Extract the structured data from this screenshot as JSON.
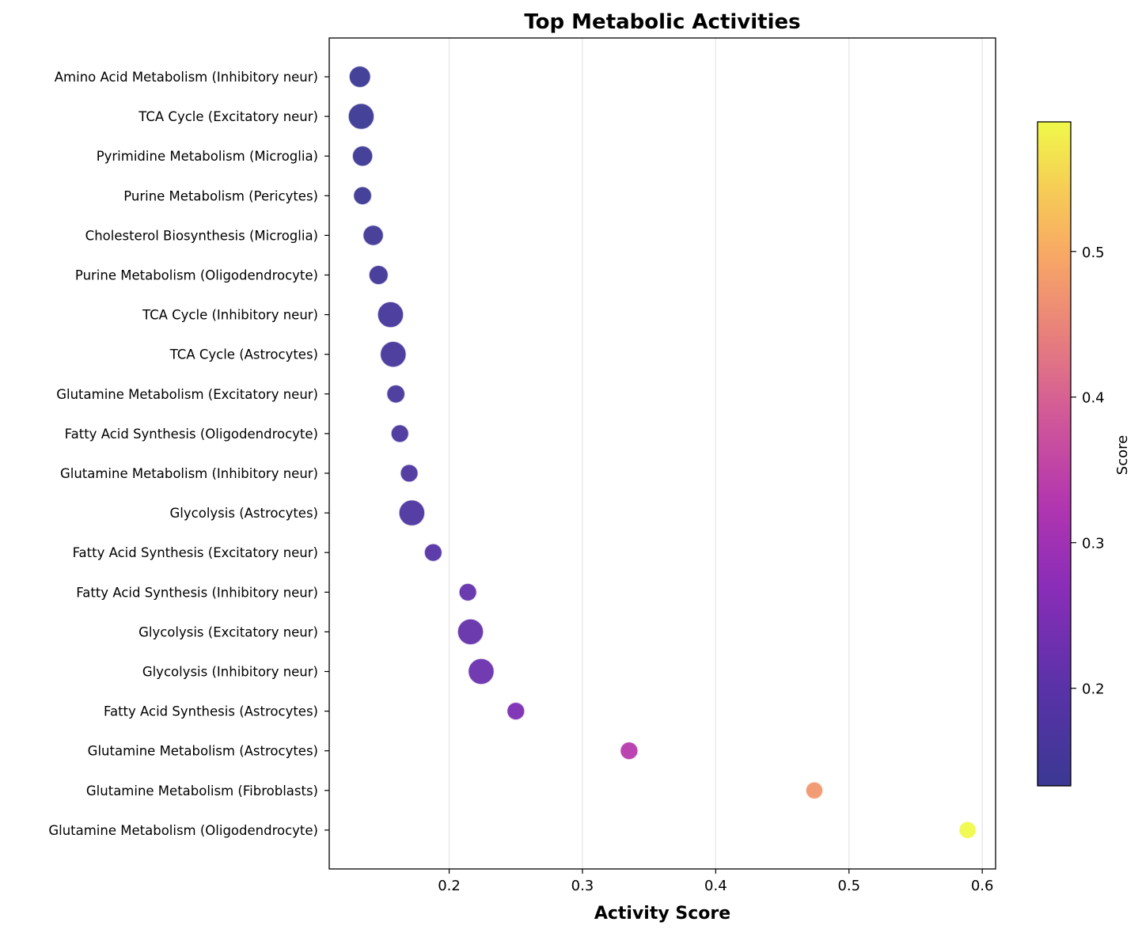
{
  "chart_data": {
    "type": "scatter",
    "title": "Top Metabolic Activities",
    "xlabel": "Activity Score",
    "ylabel": "",
    "xlim": [
      0.11,
      0.61
    ],
    "xticks": [
      0.2,
      0.3,
      0.4,
      0.5,
      0.6
    ],
    "xtick_labels": [
      "0.2",
      "0.3",
      "0.4",
      "0.5",
      "0.6"
    ],
    "grid": "vertical",
    "colormap": "plasma",
    "colorbar": {
      "label": "Score",
      "range": [
        0.133,
        0.589
      ],
      "ticks": [
        0.2,
        0.3,
        0.4,
        0.5
      ],
      "tick_labels": [
        "0.2",
        "0.3",
        "0.4",
        "0.5"
      ]
    },
    "categories": [
      "Amino Acid Metabolism (Inhibitory neur)",
      "TCA Cycle (Excitatory neur)",
      "Pyrimidine Metabolism (Microglia)",
      "Purine Metabolism (Pericytes)",
      "Cholesterol Biosynthesis (Microglia)",
      "Purine Metabolism (Oligodendrocyte)",
      "TCA Cycle (Inhibitory neur)",
      "TCA Cycle (Astrocytes)",
      "Glutamine Metabolism (Excitatory neur)",
      "Fatty Acid Synthesis (Oligodendrocyte)",
      "Glutamine Metabolism (Inhibitory neur)",
      "Glycolysis (Astrocytes)",
      "Fatty Acid Synthesis (Excitatory neur)",
      "Fatty Acid Synthesis (Inhibitory neur)",
      "Glycolysis (Excitatory neur)",
      "Glycolysis (Inhibitory neur)",
      "Fatty Acid Synthesis (Astrocytes)",
      "Glutamine Metabolism (Astrocytes)",
      "Glutamine Metabolism (Fibroblasts)",
      "Glutamine Metabolism (Oligodendrocyte)"
    ],
    "values": [
      0.133,
      0.134,
      0.135,
      0.135,
      0.143,
      0.147,
      0.156,
      0.158,
      0.16,
      0.163,
      0.17,
      0.172,
      0.188,
      0.214,
      0.216,
      0.224,
      0.25,
      0.335,
      0.474,
      0.589
    ],
    "point_size_relative": [
      0.55,
      0.75,
      0.5,
      0.4,
      0.5,
      0.45,
      0.75,
      0.75,
      0.4,
      0.38,
      0.38,
      0.75,
      0.38,
      0.38,
      0.75,
      0.75,
      0.38,
      0.38,
      0.35,
      0.35
    ]
  }
}
